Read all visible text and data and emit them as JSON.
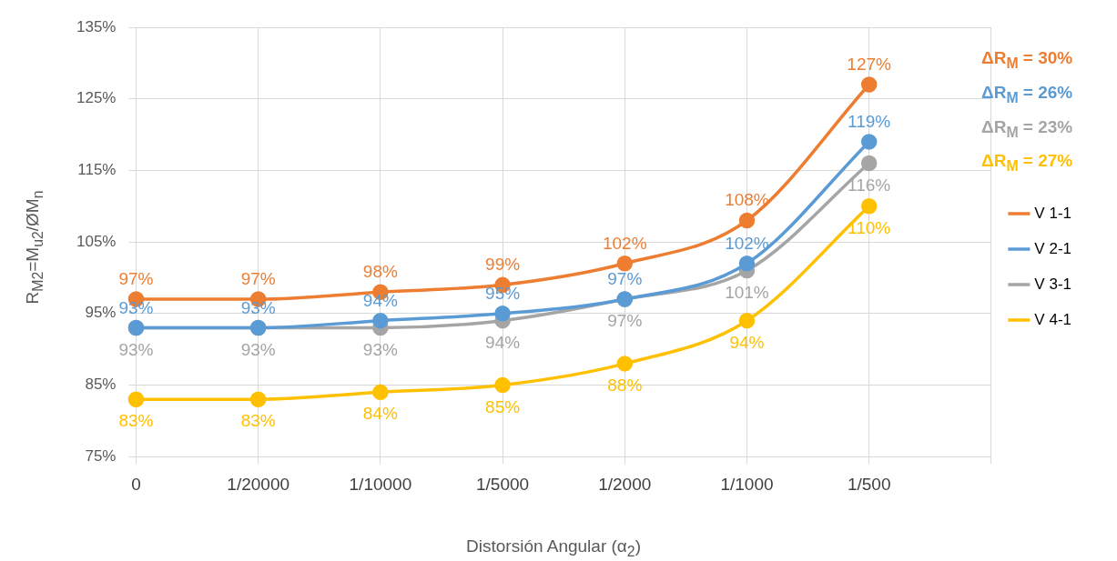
{
  "chart_data": {
    "type": "line",
    "xlabel": "Distorsión Angular (α$_{2}$)",
    "ylabel": "R$_{M2}$=M$_{u2}$/ØM$_{n}$",
    "categories": [
      "0",
      "1/20000",
      "1/10000",
      "1/5000",
      "1/2000",
      "1/1000",
      "1/500",
      null
    ],
    "series": [
      {
        "name": "V 1-1",
        "color": "#ed7d31",
        "values": [
          97,
          97,
          98,
          99,
          102,
          108,
          127,
          null
        ],
        "value_labels": [
          "97%",
          "97%",
          "98%",
          "99%",
          "102%",
          "108%",
          "127%",
          null
        ]
      },
      {
        "name": "V 2-1",
        "color": "#5b9bd5",
        "values": [
          93,
          93,
          94,
          95,
          97,
          102,
          119,
          null
        ],
        "value_labels": [
          "93%",
          "93%",
          "94%",
          "95%",
          "97%",
          "102%",
          "119%",
          null
        ]
      },
      {
        "name": "V 3-1",
        "color": "#a5a5a5",
        "values": [
          93,
          93,
          93,
          94,
          97,
          101,
          116,
          null
        ],
        "value_labels": [
          "93%",
          "93%",
          "93%",
          "94%",
          "97%",
          "101%",
          "116%",
          null
        ]
      },
      {
        "name": "V 4-1",
        "color": "#ffc000",
        "values": [
          83,
          83,
          84,
          85,
          88,
          94,
          110,
          null
        ],
        "value_labels": [
          "83%",
          "83%",
          "84%",
          "85%",
          "88%",
          "94%",
          "110%",
          null
        ]
      }
    ],
    "ylim": [
      75,
      135
    ],
    "yticks": [
      {
        "value": 75,
        "label": "75%"
      },
      {
        "value": 85,
        "label": "85%"
      },
      {
        "value": 95,
        "label": "95%"
      },
      {
        "value": 105,
        "label": "105%"
      },
      {
        "value": 115,
        "label": "115%"
      },
      {
        "value": 125,
        "label": "125%"
      },
      {
        "value": 135,
        "label": "135%"
      }
    ],
    "annotations": [
      "ΔR$_{M}$ = 30%",
      "ΔR$_{M}$ = 26%",
      "ΔR$_{M}$ = 23%",
      "ΔR$_{M}$ = 27%"
    ],
    "grid": true,
    "legend": "right",
    "marker": "circle",
    "line_style": "solid"
  }
}
